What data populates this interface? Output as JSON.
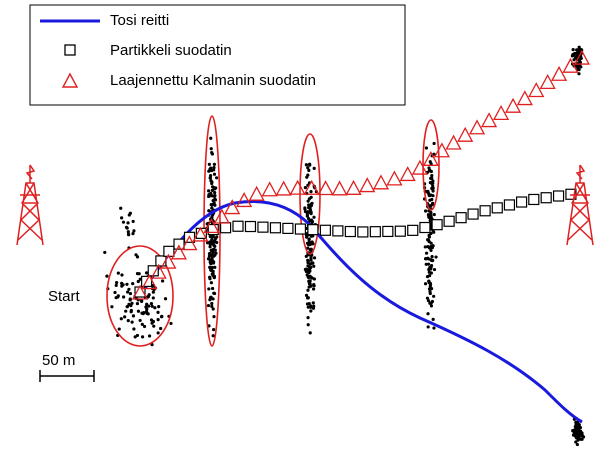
{
  "legend": {
    "items": [
      "Tosi reitti",
      "Partikkeli suodatin",
      "Laajennettu Kalmanin suodatin"
    ]
  },
  "start_label": "Start",
  "scale_bar": {
    "label": "50 m"
  }
}
